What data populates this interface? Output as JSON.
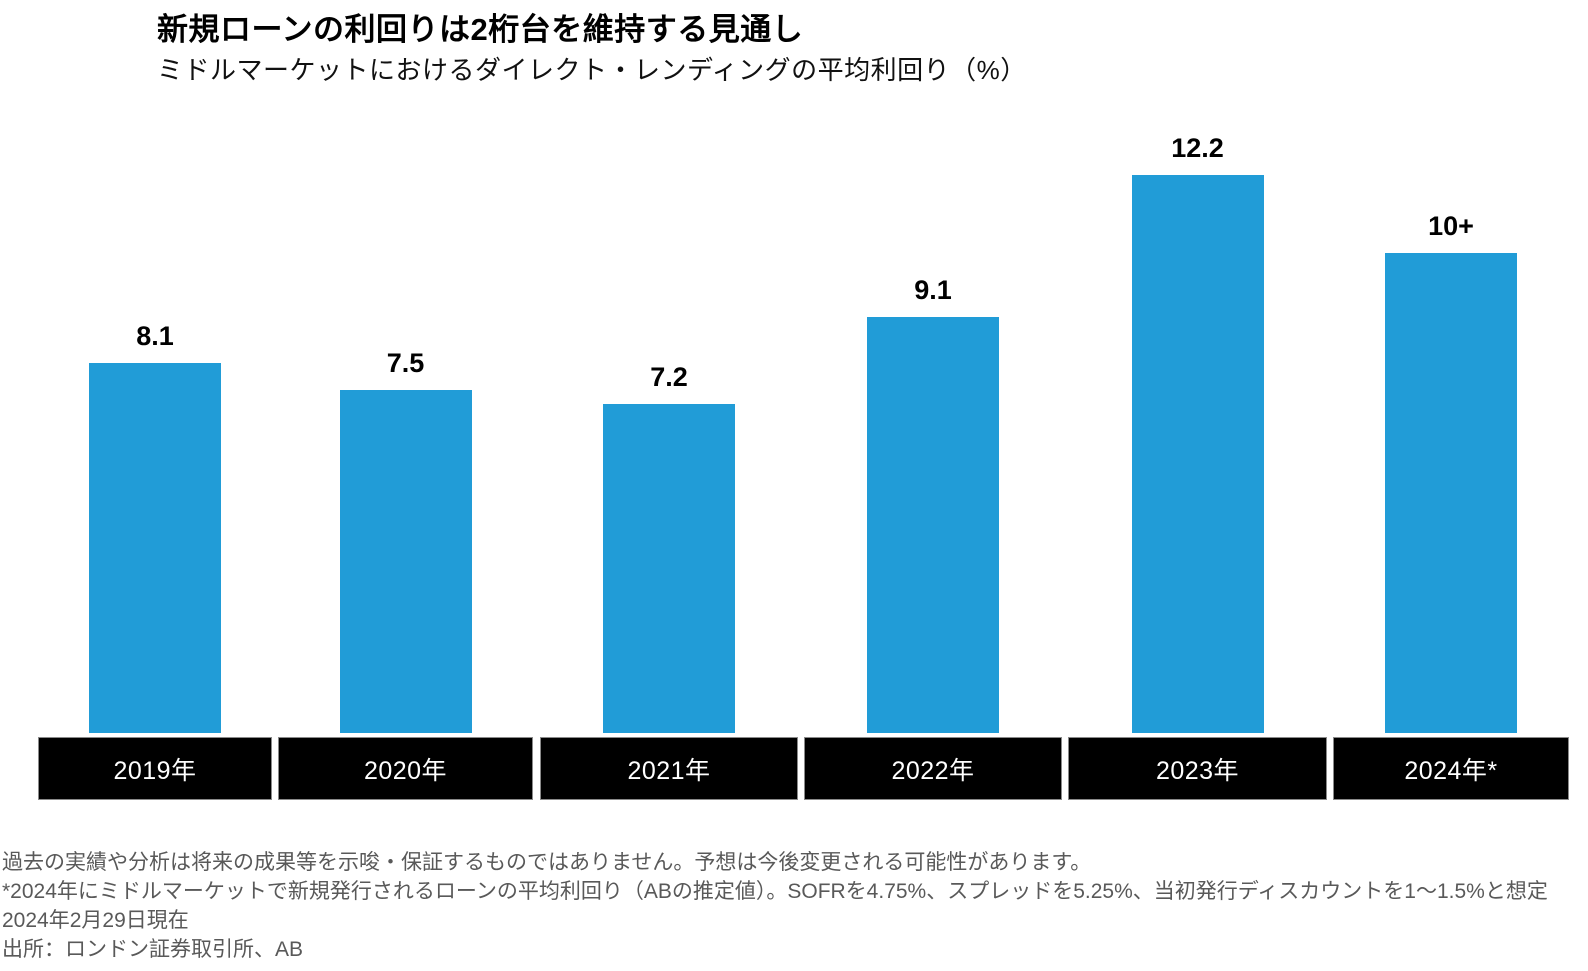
{
  "title": "新規ローンの利回りは2桁台を維持する見通し",
  "subtitle": "ミドルマーケットにおけるダイレクト・レンディングの平均利回り（%）",
  "colors": {
    "bar": "#219CD7",
    "axis_band_bg": "#000000",
    "axis_band_text": "#FFFFFF",
    "title_text": "#000000",
    "footnote_text": "#595959"
  },
  "chart_data": {
    "type": "bar",
    "title": "新規ローンの利回りは2桁台を維持する見通し",
    "subtitle": "ミドルマーケットにおけるダイレクト・レンディングの平均利回り（%）",
    "categories": [
      "2019年",
      "2020年",
      "2021年",
      "2022年",
      "2023年",
      "2024年*"
    ],
    "values": [
      8.1,
      7.5,
      7.2,
      9.1,
      12.2,
      10.5
    ],
    "value_labels": [
      "8.1",
      "7.5",
      "7.2",
      "9.1",
      "12.2",
      "10+"
    ],
    "xlabel": "",
    "ylabel": "平均利回り（%）",
    "ylim": [
      0,
      13.5
    ],
    "grid": false,
    "legend": "none",
    "bar_color": "#219CD7",
    "x_axis_style": "black-band-white-text"
  },
  "footnotes": [
    "過去の実績や分析は将来の成果等を示唆・保証するものではありません。予想は今後変更される可能性があります。",
    "*2024年にミドルマーケットで新規発行されるローンの平均利回り（ABの推定値）。SOFRを4.75%、スプレッドを5.25%、当初発行ディスカウントを1～1.5%と想定",
    "2024年2月29日現在",
    "出所：ロンドン証券取引所、AB"
  ]
}
